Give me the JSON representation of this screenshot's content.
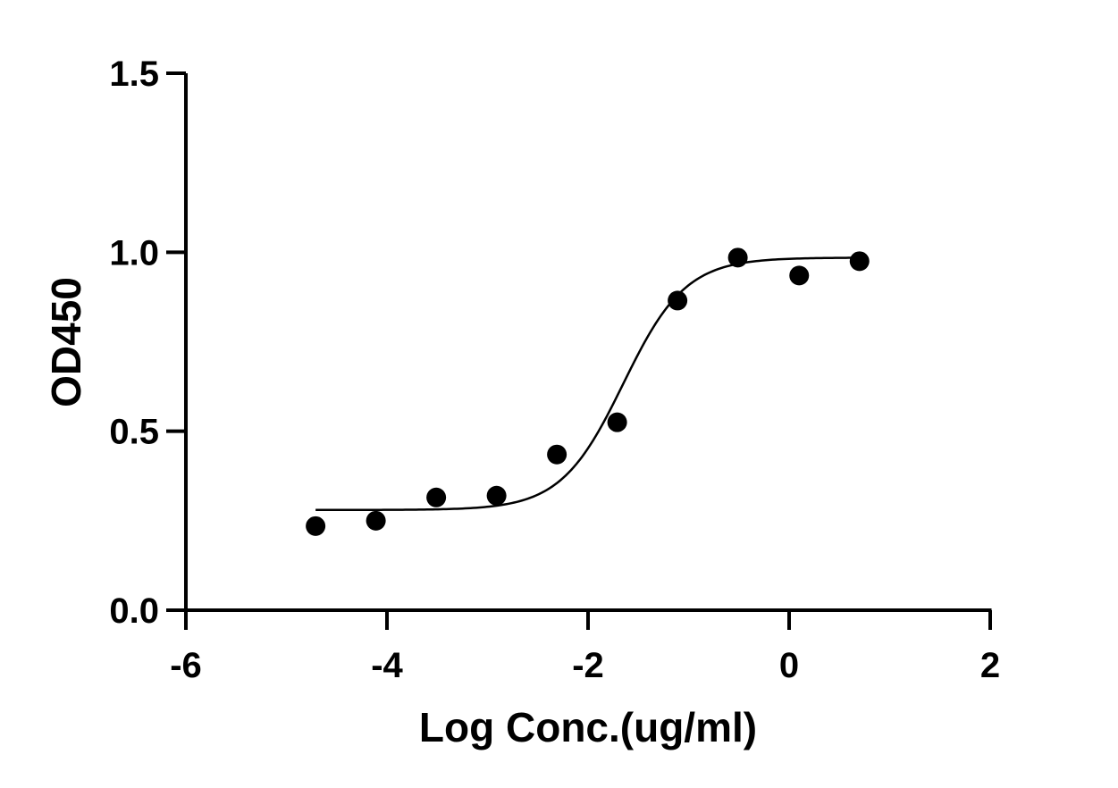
{
  "chart_data": {
    "type": "scatter",
    "title": "",
    "xlabel": "Log Conc.(ug/ml)",
    "ylabel": "OD450",
    "xlim": [
      -6,
      2
    ],
    "ylim": [
      0,
      1.5
    ],
    "x_ticks": [
      -6,
      -4,
      -2,
      0,
      2
    ],
    "x_tick_labels": [
      "-6",
      "-4",
      "-2",
      "0",
      "2"
    ],
    "y_ticks": [
      0,
      0.5,
      1.0,
      1.5
    ],
    "y_tick_labels": [
      "0.0",
      "0.5",
      "1.0",
      "1.5"
    ],
    "grid": false,
    "series": [
      {
        "type": "scatter",
        "x": [
          -4.71,
          -4.11,
          -3.51,
          -2.91,
          -2.31,
          -1.71,
          -1.11,
          -0.51,
          0.1,
          0.7
        ],
        "y": [
          0.235,
          0.25,
          0.315,
          0.32,
          0.435,
          0.525,
          0.865,
          0.985,
          0.935,
          0.975
        ],
        "color": "#000000"
      },
      {
        "type": "line",
        "fit": "4PL",
        "x_range": [
          -4.71,
          0.7
        ],
        "bottom": 0.28,
        "top": 0.985,
        "log_ec50": -1.65,
        "hill_slope": 1.4,
        "color": "#000000"
      }
    ]
  }
}
